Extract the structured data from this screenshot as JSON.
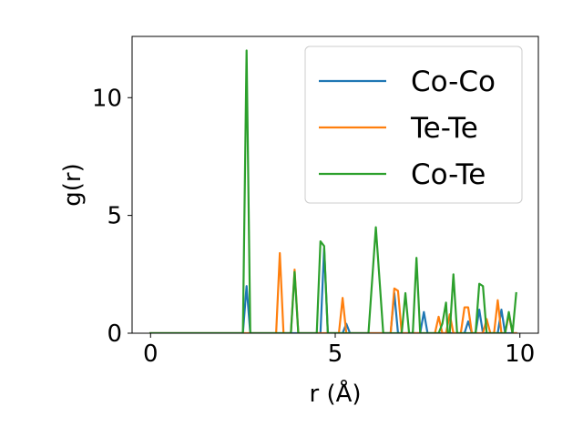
{
  "chart_data": {
    "type": "line",
    "xlabel": "r (Å)",
    "ylabel": "g(r)",
    "xlim": [
      -0.5,
      10.5
    ],
    "ylim": [
      0,
      12.6
    ],
    "xticks": [
      0,
      5,
      10
    ],
    "yticks": [
      0,
      5,
      10
    ],
    "xtick_labels": [
      "0",
      "5",
      "10"
    ],
    "ytick_labels": [
      "0",
      "5",
      "10"
    ],
    "legend_position": "top-right",
    "grid": false,
    "series": [
      {
        "name": "Co-Co",
        "color": "#1f77b4",
        "points": [
          [
            0,
            0
          ],
          [
            2.5,
            0
          ],
          [
            2.6,
            2.0
          ],
          [
            2.7,
            0
          ],
          [
            4.6,
            0
          ],
          [
            4.7,
            3.6
          ],
          [
            4.8,
            0
          ],
          [
            5.2,
            0
          ],
          [
            5.3,
            0.4
          ],
          [
            5.4,
            0
          ],
          [
            6.5,
            0
          ],
          [
            6.6,
            1.7
          ],
          [
            6.7,
            0
          ],
          [
            7.3,
            0
          ],
          [
            7.4,
            0.9
          ],
          [
            7.5,
            0
          ],
          [
            8.5,
            0
          ],
          [
            8.6,
            0.5
          ],
          [
            8.7,
            0
          ],
          [
            8.8,
            0
          ],
          [
            8.9,
            1.0
          ],
          [
            9.0,
            0
          ],
          [
            9.4,
            0
          ],
          [
            9.5,
            1.0
          ],
          [
            9.6,
            0
          ],
          [
            9.9,
            0
          ]
        ]
      },
      {
        "name": "Te-Te",
        "color": "#ff7f0e",
        "points": [
          [
            0,
            0
          ],
          [
            3.4,
            0
          ],
          [
            3.5,
            3.4
          ],
          [
            3.6,
            0
          ],
          [
            3.8,
            0
          ],
          [
            3.9,
            2.7
          ],
          [
            4.0,
            0
          ],
          [
            5.1,
            0
          ],
          [
            5.2,
            1.5
          ],
          [
            5.3,
            0
          ],
          [
            6.5,
            0
          ],
          [
            6.6,
            1.9
          ],
          [
            6.7,
            1.8
          ],
          [
            6.8,
            0
          ],
          [
            7.7,
            0
          ],
          [
            7.8,
            0.7
          ],
          [
            7.9,
            0
          ],
          [
            8.0,
            0
          ],
          [
            8.1,
            0.8
          ],
          [
            8.2,
            0
          ],
          [
            8.4,
            0
          ],
          [
            8.5,
            1.1
          ],
          [
            8.6,
            1.1
          ],
          [
            8.7,
            0
          ],
          [
            9.0,
            0
          ],
          [
            9.1,
            0.6
          ],
          [
            9.2,
            0
          ],
          [
            9.3,
            0
          ],
          [
            9.4,
            1.4
          ],
          [
            9.5,
            0
          ],
          [
            9.6,
            0
          ],
          [
            9.7,
            0.8
          ],
          [
            9.8,
            0
          ],
          [
            9.9,
            0
          ]
        ]
      },
      {
        "name": "Co-Te",
        "color": "#2ca02c",
        "points": [
          [
            0,
            0
          ],
          [
            2.5,
            0
          ],
          [
            2.6,
            12.0
          ],
          [
            2.7,
            0
          ],
          [
            3.8,
            0
          ],
          [
            3.9,
            2.6
          ],
          [
            4.0,
            0
          ],
          [
            4.5,
            0
          ],
          [
            4.6,
            3.9
          ],
          [
            4.7,
            3.7
          ],
          [
            4.8,
            0
          ],
          [
            5.9,
            0
          ],
          [
            6.1,
            4.5
          ],
          [
            6.3,
            0
          ],
          [
            6.8,
            0
          ],
          [
            6.9,
            1.7
          ],
          [
            7.0,
            0
          ],
          [
            7.1,
            0
          ],
          [
            7.2,
            3.2
          ],
          [
            7.3,
            0
          ],
          [
            7.8,
            0
          ],
          [
            7.9,
            0.4
          ],
          [
            8.0,
            1.3
          ],
          [
            8.05,
            0
          ],
          [
            8.1,
            0
          ],
          [
            8.2,
            2.5
          ],
          [
            8.3,
            0
          ],
          [
            8.8,
            0
          ],
          [
            8.9,
            2.1
          ],
          [
            9.0,
            2.0
          ],
          [
            9.1,
            0
          ],
          [
            9.5,
            0
          ],
          [
            9.6,
            0
          ],
          [
            9.7,
            0.9
          ],
          [
            9.8,
            0
          ],
          [
            9.9,
            1.7
          ]
        ]
      }
    ]
  }
}
